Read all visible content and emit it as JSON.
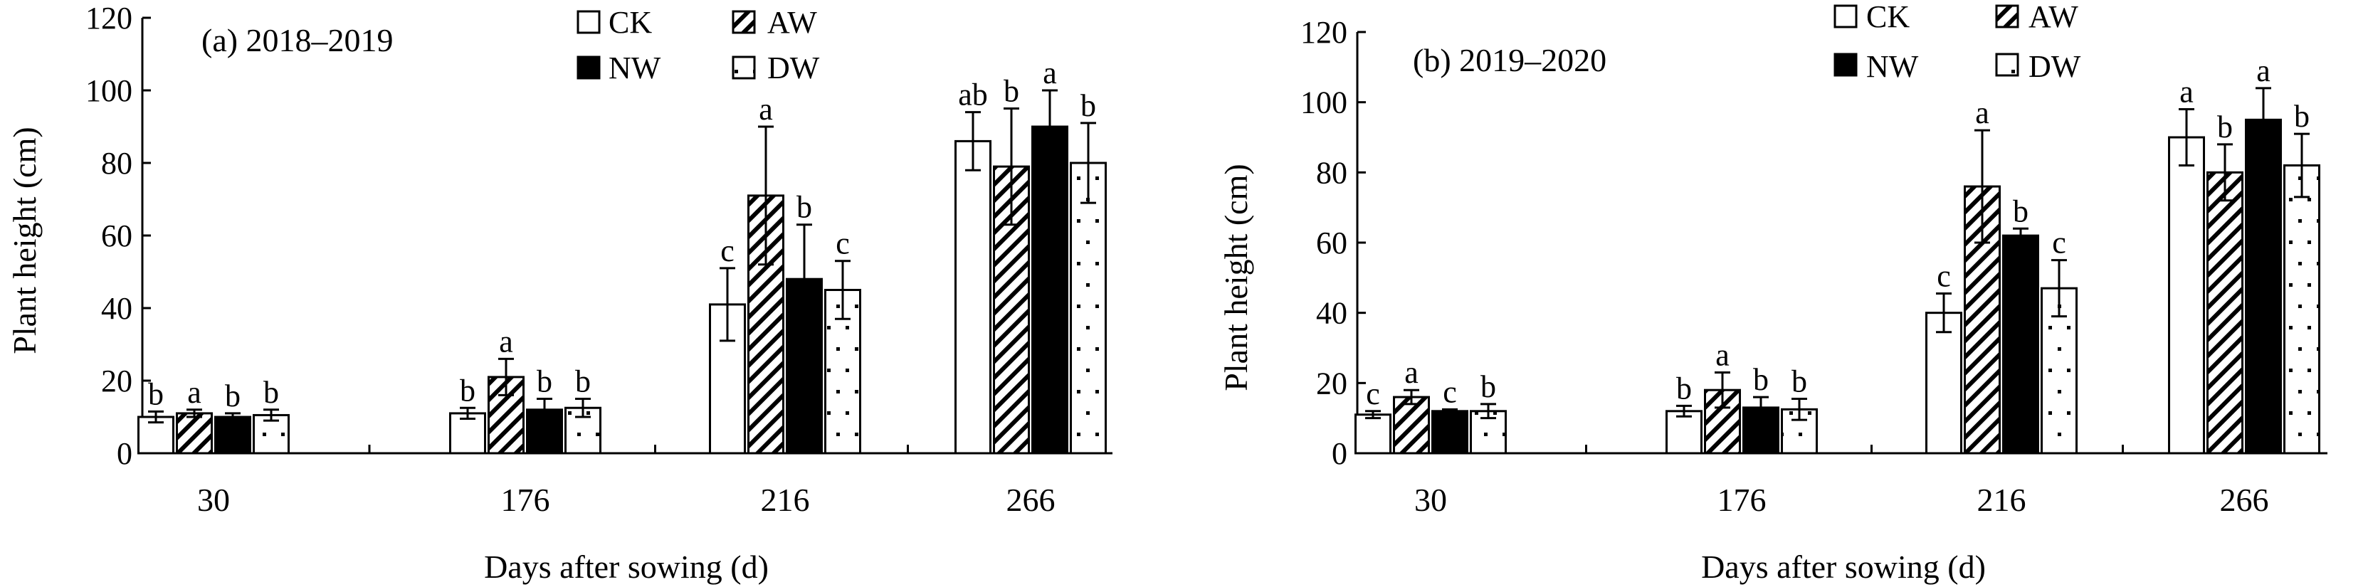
{
  "colors": {
    "ink": "#000000",
    "background": "#ffffff"
  },
  "chart_data": [
    {
      "type": "bar",
      "title": "(a) 2018–2019",
      "xlabel": "Days after sowing (d)",
      "ylabel": "Plant height (cm)",
      "ylim": [
        0,
        120
      ],
      "yticks": [
        "0",
        "20",
        "40",
        "60",
        "80",
        "100",
        "120"
      ],
      "categories": [
        "30",
        "176",
        "216",
        "266"
      ],
      "legend_position": "top-center",
      "series": [
        {
          "name": "CK",
          "pattern": "open",
          "values": [
            10,
            11,
            41,
            86
          ],
          "errors": [
            1.5,
            1.5,
            10,
            8
          ],
          "letters": [
            "b",
            "b",
            "c",
            "ab"
          ]
        },
        {
          "name": "AW",
          "pattern": "diagonal-hatch",
          "values": [
            11,
            21,
            71,
            79
          ],
          "errors": [
            1,
            5,
            19,
            16
          ],
          "letters": [
            "a",
            "a",
            "a",
            "b"
          ]
        },
        {
          "name": "NW",
          "pattern": "solid",
          "values": [
            10,
            12,
            48,
            90
          ],
          "errors": [
            1,
            3,
            15,
            10
          ],
          "letters": [
            "b",
            "b",
            "b",
            "a"
          ]
        },
        {
          "name": "DW",
          "pattern": "dotted",
          "values": [
            10.5,
            12.5,
            45,
            80
          ],
          "errors": [
            1.5,
            2.5,
            8,
            11
          ],
          "letters": [
            "b",
            "b",
            "c",
            "b"
          ]
        }
      ]
    },
    {
      "type": "bar",
      "title": "(b) 2019–2020",
      "xlabel": "Days after sowing (d)",
      "ylabel": "Plant height (cm)",
      "ylim": [
        0,
        120
      ],
      "yticks": [
        "0",
        "20",
        "40",
        "60",
        "80",
        "100",
        "120"
      ],
      "categories": [
        "30",
        "176",
        "216",
        "266"
      ],
      "legend_position": "top-center",
      "series": [
        {
          "name": "CK",
          "pattern": "open",
          "values": [
            11,
            12,
            40,
            90
          ],
          "errors": [
            1,
            1.5,
            5.5,
            8
          ],
          "letters": [
            "c",
            "b",
            "c",
            "a"
          ]
        },
        {
          "name": "AW",
          "pattern": "diagonal-hatch",
          "values": [
            16,
            18,
            76,
            80
          ],
          "errors": [
            2,
            5,
            16,
            8
          ],
          "letters": [
            "a",
            "a",
            "a",
            "b"
          ]
        },
        {
          "name": "NW",
          "pattern": "solid",
          "values": [
            12,
            13,
            62,
            95
          ],
          "errors": [
            0.5,
            3,
            2,
            9
          ],
          "letters": [
            "c",
            "b",
            "b",
            "a"
          ]
        },
        {
          "name": "DW",
          "pattern": "dotted",
          "values": [
            12,
            12.5,
            47,
            82
          ],
          "errors": [
            2,
            3,
            8,
            9
          ],
          "letters": [
            "b",
            "b",
            "c",
            "b"
          ]
        }
      ]
    }
  ]
}
